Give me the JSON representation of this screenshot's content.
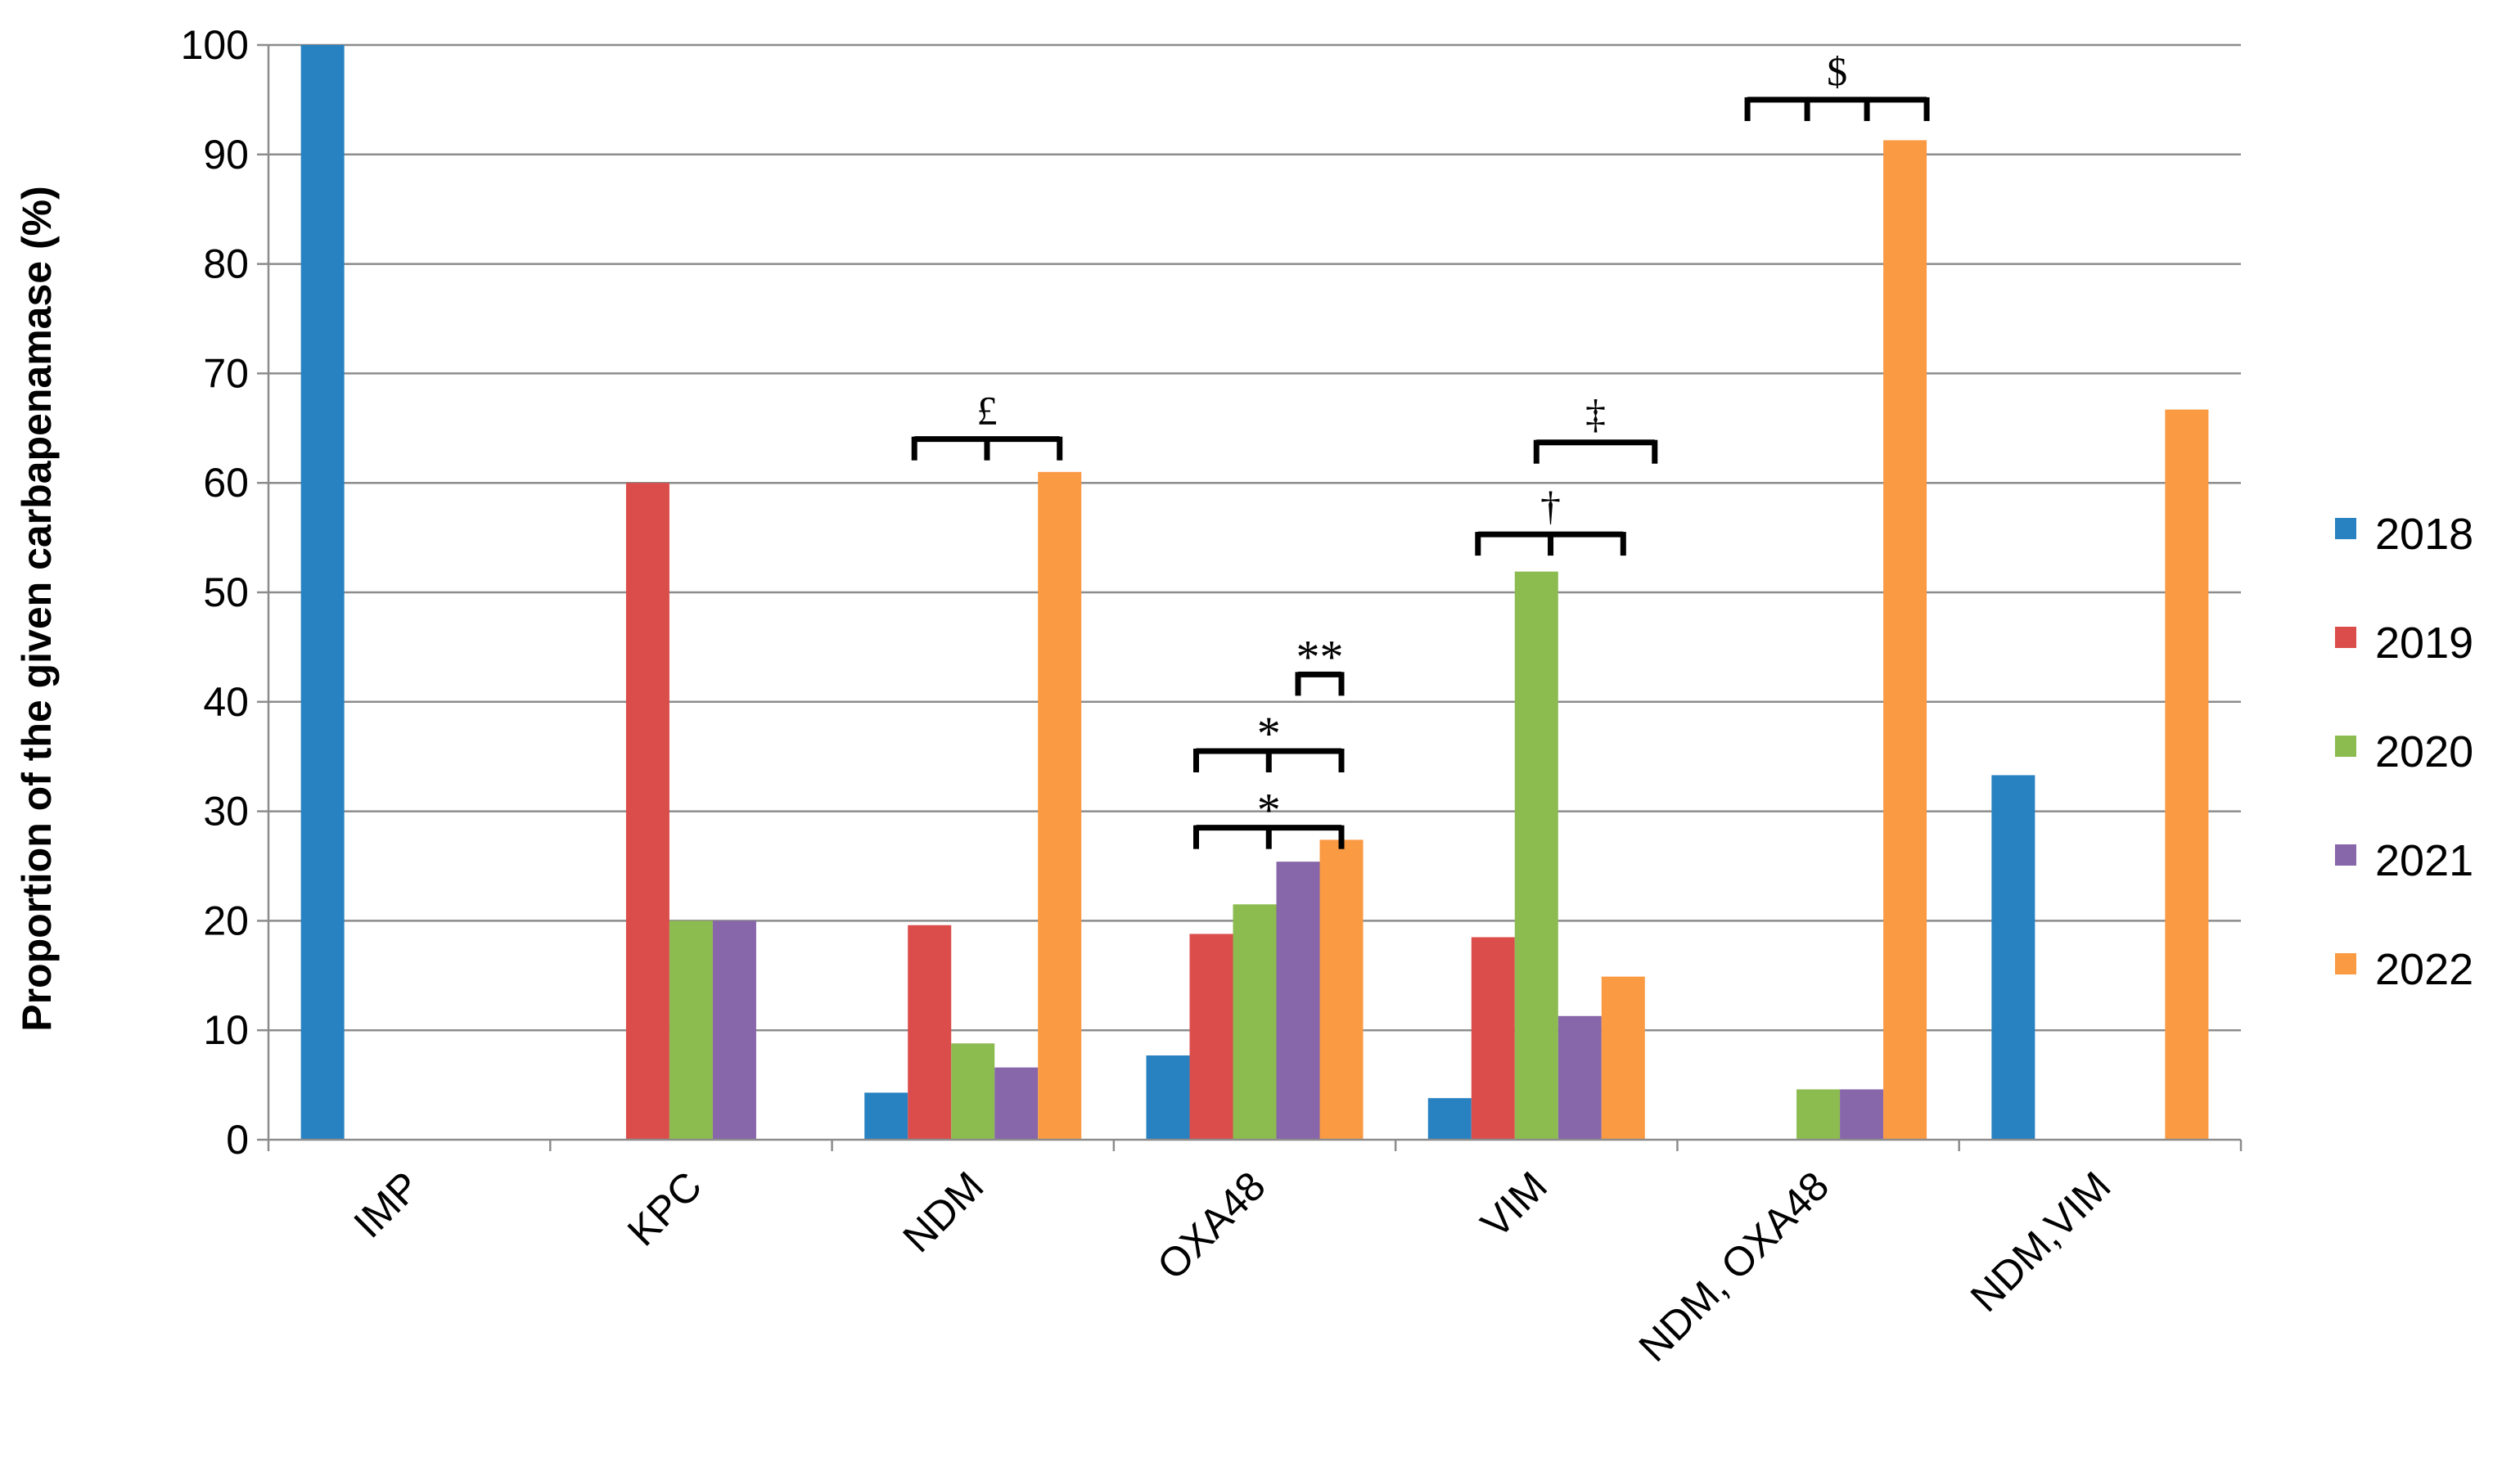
{
  "chart_data": {
    "type": "bar",
    "title": "",
    "xlabel": "",
    "ylabel": "Proportion of the given carbapenamase (%)",
    "ylim": [
      0,
      100
    ],
    "yticks": [
      0,
      10,
      20,
      30,
      40,
      50,
      60,
      70,
      80,
      90,
      100
    ],
    "grid": true,
    "legend_position": "right",
    "categories": [
      "IMP",
      "KPC",
      "NDM",
      "OXA48",
      "VIM",
      "NDM, OXA48",
      "NDM,VIM"
    ],
    "series": [
      {
        "name": "2018",
        "color": "#2882C1",
        "values": [
          100,
          0,
          4.3,
          7.7,
          3.8,
          0,
          33.3
        ]
      },
      {
        "name": "2019",
        "color": "#DB4D4B",
        "values": [
          0,
          60,
          19.6,
          18.8,
          18.5,
          0,
          0
        ]
      },
      {
        "name": "2020",
        "color": "#8CBB4F",
        "values": [
          0,
          20,
          8.8,
          21.5,
          51.9,
          4.6,
          0
        ]
      },
      {
        "name": "2021",
        "color": "#8766A9",
        "values": [
          0,
          20,
          6.6,
          25.4,
          11.3,
          4.6,
          0
        ]
      },
      {
        "name": "2022",
        "color": "#FA9A43",
        "values": [
          0,
          0,
          61,
          27.4,
          14.9,
          91.3,
          66.7
        ]
      }
    ],
    "annotations": [
      {
        "symbol": "£",
        "category": "NDM",
        "series": [
          "2020",
          "2021",
          "2022"
        ],
        "level": 64,
        "ends": [
          0,
          2
        ],
        "ticks": [
          0,
          1,
          2
        ]
      },
      {
        "symbol": "*",
        "category": "OXA48",
        "series": [
          "2020",
          "2021",
          "2022"
        ],
        "level": 28.5,
        "ends": [
          0,
          2
        ],
        "ticks": [
          0,
          1,
          2
        ]
      },
      {
        "symbol": "*",
        "category": "OXA48",
        "series": [
          "2020",
          "2021",
          "2022"
        ],
        "level": 35.5,
        "ends": [
          0,
          2
        ],
        "ticks": [
          0,
          1,
          2
        ]
      },
      {
        "symbol": "**",
        "category": "OXA48",
        "series": [
          "2020",
          "2021",
          "2022"
        ],
        "level": 42.5,
        "ends": [
          0,
          1
        ],
        "ticks": [
          0,
          1
        ]
      },
      {
        "symbol": "†",
        "category": "VIM",
        "series": [
          "2020",
          "2021",
          "2022"
        ],
        "level": 55.3,
        "ends": [
          0,
          2
        ],
        "ticks": [
          0,
          1,
          2
        ]
      },
      {
        "symbol": "‡",
        "category": "VIM",
        "series": [
          "2020",
          "2021",
          "2022"
        ],
        "level": 63.7,
        "ends": [
          0,
          1
        ],
        "ticks": [
          0,
          1
        ]
      },
      {
        "symbol": "$",
        "category": "NDM, OXA48",
        "series": [
          "2020",
          "2021",
          "2022"
        ],
        "level": 95,
        "ends": [
          0,
          3
        ],
        "ticks": [
          0,
          1,
          2,
          3
        ]
      }
    ]
  }
}
